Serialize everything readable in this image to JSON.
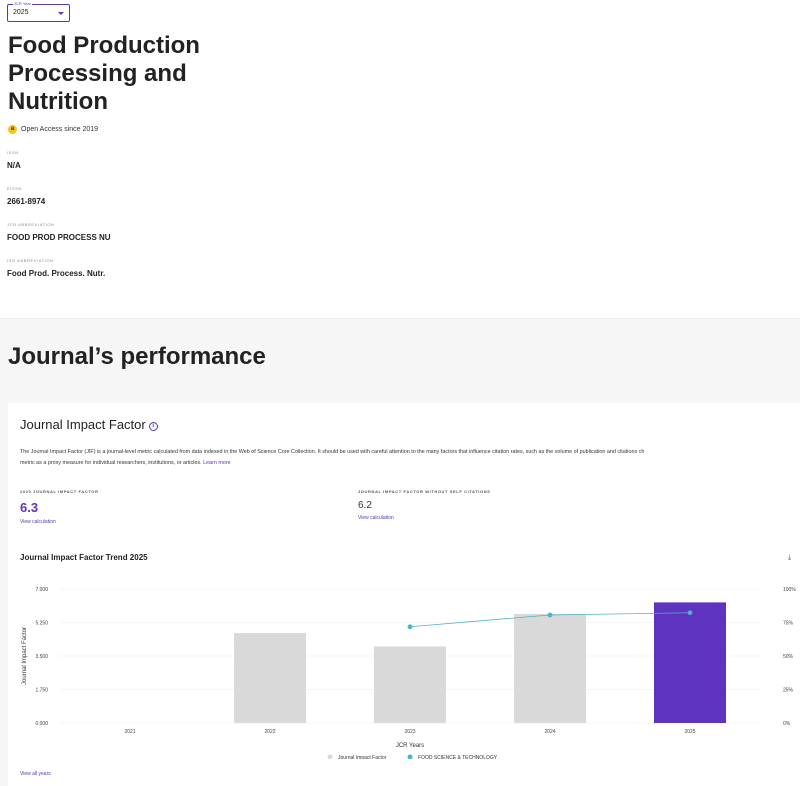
{
  "jcr_select": {
    "label": "JCR Year",
    "value": "2025"
  },
  "journal": {
    "title": "Food Production Processing and Nutrition",
    "open_access": "Open Access since 2019",
    "fields": [
      {
        "label": "ISSN",
        "value": "N/A"
      },
      {
        "label": "EISSN",
        "value": "2661-8974"
      },
      {
        "label": "JCR ABBREVIATION",
        "value": "FOOD PROD PROCESS NU"
      },
      {
        "label": "ISO ABBREVIATION",
        "value": "Food Prod. Process. Nutr."
      }
    ]
  },
  "performance": {
    "title": "Journal’s performance"
  },
  "jif": {
    "title": "Journal Impact Factor",
    "description": "The Journal Impact Factor (JIF) is a journal-level metric calculated from data indexed in the Web of Science Core Collection. It should be used with careful attention to the many factors that influence citation rates, such as the volume of publication and citations ch",
    "description_line2": "metric as a proxy measure for individual researchers, institutions, or articles.",
    "learn_more": "Learn more",
    "metric_main": {
      "label": "2025 JOURNAL IMPACT FACTOR",
      "value": "6.3",
      "link": "View calculation"
    },
    "metric_self": {
      "label": "JOURNAL IMPACT FACTOR WITHOUT SELF CITATIONS",
      "value": "6.2",
      "link": "View calculation"
    },
    "trend_title": "Journal Impact Factor Trend 2025",
    "view_all": "View all years"
  },
  "colors": {
    "accent": "#5e33bf",
    "bar": "#d9d9d9",
    "line": "#4db3c8"
  },
  "chart_data": {
    "type": "bar",
    "categories": [
      "2021",
      "2022",
      "2023",
      "2024",
      "2025"
    ],
    "series": [
      {
        "name": "Journal Impact Factor",
        "values": [
          null,
          4.7,
          4.0,
          5.7,
          6.3
        ]
      },
      {
        "name": "FOOD SCIENCE & TECHNOLOGY",
        "values": [
          null,
          null,
          71.8,
          80.6,
          82.3
        ]
      }
    ],
    "xlabel": "JCR Years",
    "ylabel": "Journal Impact Factor",
    "ylim": [
      0,
      7
    ],
    "y2lim": [
      0,
      100
    ],
    "yticks": [
      "0.000",
      "1.750",
      "3.500",
      "5.250",
      "7.000"
    ],
    "y2ticks": [
      "0%",
      "25%",
      "50%",
      "75%",
      "100%"
    ],
    "highlight_category": "2025",
    "legend_position": "bottom-center",
    "grid": true
  }
}
